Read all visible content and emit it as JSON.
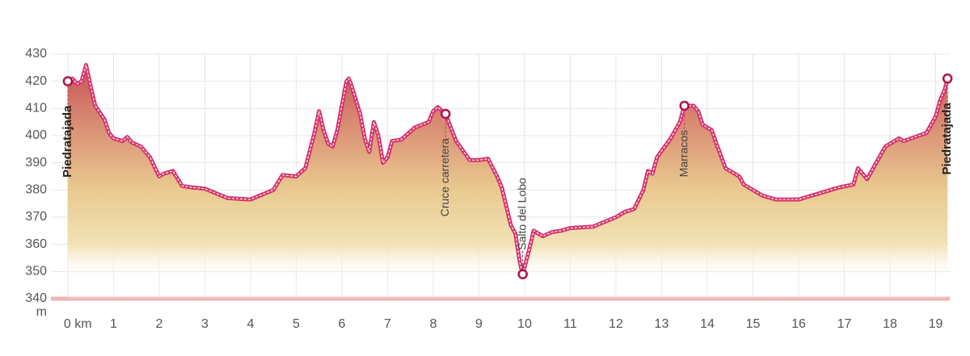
{
  "chart_data": {
    "type": "line",
    "x": [
      0,
      0.1,
      0.2,
      0.3,
      0.4,
      0.5,
      0.6,
      0.8,
      0.9,
      1.0,
      1.2,
      1.3,
      1.4,
      1.6,
      1.8,
      2.0,
      2.1,
      2.3,
      2.5,
      2.7,
      3.0,
      3.5,
      4.0,
      4.5,
      4.7,
      5.0,
      5.2,
      5.4,
      5.5,
      5.6,
      5.7,
      5.8,
      5.9,
      6.0,
      6.1,
      6.15,
      6.2,
      6.4,
      6.5,
      6.6,
      6.7,
      6.8,
      6.9,
      7.0,
      7.1,
      7.3,
      7.6,
      7.9,
      8.0,
      8.1,
      8.27,
      8.5,
      8.8,
      9.0,
      9.2,
      9.4,
      9.5,
      9.7,
      9.8,
      9.9,
      9.96,
      10.1,
      10.2,
      10.4,
      10.6,
      10.8,
      11.0,
      11.5,
      12.0,
      12.2,
      12.4,
      12.6,
      12.7,
      12.8,
      12.9,
      13.2,
      13.4,
      13.5,
      13.7,
      13.8,
      13.9,
      14.1,
      14.2,
      14.4,
      14.7,
      14.8,
      15.2,
      15.5,
      16.0,
      16.5,
      16.9,
      17.2,
      17.3,
      17.5,
      17.9,
      18.0,
      18.2,
      18.3,
      18.8,
      19.0,
      19.1,
      19.2,
      19.26
    ],
    "values": [
      420,
      421,
      419,
      420,
      426,
      418,
      411,
      406,
      401,
      399,
      398,
      399.5,
      397.5,
      396,
      392,
      385,
      386,
      387,
      381.5,
      381,
      380.5,
      377,
      376.5,
      380,
      385.5,
      385,
      388,
      401,
      409,
      402,
      397,
      396,
      402,
      411,
      420,
      421,
      419,
      408,
      399,
      394,
      405,
      400,
      390,
      392,
      398,
      398.5,
      403,
      405,
      409,
      410.5,
      408,
      398,
      391,
      391,
      391.5,
      385,
      381,
      367,
      364,
      353,
      349,
      358,
      365,
      363,
      364.5,
      365,
      366,
      366.5,
      370,
      372,
      373,
      380,
      387,
      386,
      392,
      399,
      405,
      411,
      411,
      409,
      404,
      402,
      397,
      388,
      385,
      382,
      378,
      376.5,
      376.5,
      379,
      381,
      382,
      388,
      384,
      396,
      397,
      399,
      398,
      401,
      407,
      413,
      417,
      421
    ],
    "color": "#d6336c",
    "xlim": [
      -0.37,
      19.31
    ],
    "ylim": [
      340,
      430
    ],
    "xticks": [
      {
        "value": 0,
        "label": "0 km"
      },
      1,
      2,
      3,
      4,
      5,
      6,
      7,
      8,
      9,
      10,
      11,
      12,
      13,
      14,
      15,
      16,
      17,
      18,
      19
    ],
    "yticks": [
      340,
      350,
      360,
      370,
      380,
      390,
      400,
      410,
      420,
      430
    ],
    "y_unit": "m",
    "grid": true,
    "waypoints": [
      {
        "label": "Piedratajada",
        "x": 0,
        "y": 420,
        "side": "below",
        "bold": true
      },
      {
        "label": "Cruce carretera",
        "x": 8.27,
        "y": 408,
        "side": "below",
        "bold": false
      },
      {
        "label": "Salto del Lobo",
        "x": 9.96,
        "y": 349,
        "side": "above",
        "bold": false
      },
      {
        "label": "Marracos",
        "x": 13.5,
        "y": 411,
        "side": "below",
        "bold": false
      },
      {
        "label": "Piedratajada",
        "x": 19.26,
        "y": 421,
        "side": "below",
        "bold": true
      }
    ]
  }
}
